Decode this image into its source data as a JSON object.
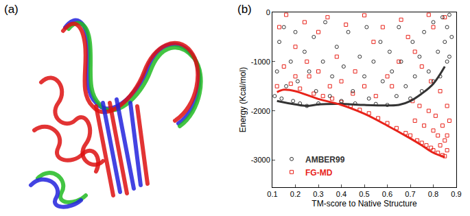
{
  "panel_labels": [
    "(a)",
    "(b)"
  ],
  "chart_data": {
    "type": "scatter",
    "x_label": "TM-score to Native Structure",
    "y_label": "Energy (Kcal/mol)",
    "xlim": [
      0.1,
      0.9
    ],
    "xticks": [
      0.1,
      0.2,
      0.3,
      0.4,
      0.5,
      0.6,
      0.7,
      0.8,
      0.9
    ],
    "ylim": [
      -3550,
      0
    ],
    "yticks": [
      -3000,
      -2000,
      -1000,
      0
    ],
    "grid": false,
    "legend": "lower left",
    "series": [
      {
        "name": "AMBER99",
        "color": "#333333",
        "marker": "circle-open",
        "line_style": "solid",
        "x": [
          0.11,
          0.12,
          0.13,
          0.14,
          0.15,
          0.16,
          0.18,
          0.19,
          0.2,
          0.21,
          0.22,
          0.24,
          0.25,
          0.26,
          0.28,
          0.29,
          0.3,
          0.32,
          0.33,
          0.35,
          0.36,
          0.38,
          0.4,
          0.41,
          0.43,
          0.45,
          0.46,
          0.48,
          0.5,
          0.51,
          0.52,
          0.54,
          0.55,
          0.57,
          0.58,
          0.6,
          0.61,
          0.62,
          0.64,
          0.65,
          0.66,
          0.68,
          0.7,
          0.71,
          0.72,
          0.74,
          0.75,
          0.76,
          0.78,
          0.8,
          0.8,
          0.82,
          0.83,
          0.84,
          0.85,
          0.86,
          0.86,
          0.87,
          0.88,
          0.87
        ],
        "values": [
          -1700,
          -1200,
          -600,
          -1750,
          -300,
          -1500,
          -1000,
          -1800,
          -400,
          -1400,
          -1850,
          -800,
          -1900,
          -1200,
          -500,
          -1600,
          -1850,
          -1000,
          -200,
          -1700,
          -1300,
          -700,
          -1800,
          -1100,
          -400,
          -1600,
          -1850,
          -900,
          -1300,
          -300,
          -1750,
          -1000,
          -1860,
          -600,
          -1400,
          -1880,
          -800,
          -1200,
          -1700,
          -300,
          -1000,
          -1500,
          -1750,
          -600,
          -1300,
          -900,
          -1600,
          -400,
          -1200,
          -1400,
          -200,
          -800,
          -1300,
          -100,
          -600,
          -1000,
          -300,
          -50,
          -500,
          -900
        ],
        "fit_x": [
          0.12,
          0.2,
          0.25,
          0.3,
          0.4,
          0.5,
          0.6,
          0.65,
          0.7,
          0.75,
          0.8,
          0.85
        ],
        "fit_values": [
          -1800,
          -1870,
          -1900,
          -1870,
          -1860,
          -1880,
          -1890,
          -1880,
          -1800,
          -1650,
          -1450,
          -1100
        ]
      },
      {
        "name": "FG-MD",
        "color": "#e8231a",
        "marker": "square-open",
        "line_style": "solid",
        "x": [
          0.12,
          0.13,
          0.15,
          0.16,
          0.18,
          0.2,
          0.22,
          0.24,
          0.26,
          0.28,
          0.3,
          0.32,
          0.34,
          0.36,
          0.38,
          0.4,
          0.42,
          0.44,
          0.46,
          0.48,
          0.5,
          0.52,
          0.54,
          0.56,
          0.58,
          0.6,
          0.62,
          0.64,
          0.66,
          0.68,
          0.7,
          0.71,
          0.72,
          0.73,
          0.74,
          0.75,
          0.76,
          0.77,
          0.78,
          0.79,
          0.8,
          0.8,
          0.81,
          0.82,
          0.82,
          0.83,
          0.84,
          0.84,
          0.85,
          0.85,
          0.86,
          0.86,
          0.87,
          0.86,
          0.83,
          0.79,
          0.75,
          0.72,
          0.69,
          0.65,
          0.6,
          0.55,
          0.5,
          0.45,
          0.4,
          0.35,
          0.3,
          0.25,
          0.2,
          0.85,
          0.8,
          0.78
        ],
        "values": [
          -1500,
          -300,
          -1100,
          -50,
          -1450,
          -700,
          -1550,
          -200,
          -1300,
          -1650,
          -400,
          -1700,
          -100,
          -1750,
          -900,
          -1820,
          -250,
          -1900,
          -1200,
          -1980,
          -60,
          -2050,
          -600,
          -2150,
          -300,
          -2250,
          -1500,
          -2350,
          -150,
          -2450,
          -2500,
          -1800,
          -2200,
          -2600,
          -1900,
          -2650,
          -2300,
          -2700,
          -2000,
          -2750,
          -2800,
          -2400,
          -2100,
          -2850,
          -2500,
          -2700,
          -2900,
          -2300,
          -2920,
          -2600,
          -2500,
          -2800,
          -2200,
          -1900,
          -1600,
          -1400,
          -1100,
          -800,
          -500,
          -1000,
          -1300,
          -1700,
          -1500,
          -1650,
          -1400,
          -1500,
          -1200,
          -1000,
          -1300,
          -100,
          -300,
          -50
        ],
        "fit_x": [
          0.12,
          0.15,
          0.2,
          0.3,
          0.4,
          0.5,
          0.6,
          0.7,
          0.75,
          0.8,
          0.85
        ],
        "fit_values": [
          -1620,
          -1570,
          -1600,
          -1760,
          -1880,
          -2060,
          -2300,
          -2560,
          -2700,
          -2850,
          -2940
        ]
      }
    ]
  }
}
